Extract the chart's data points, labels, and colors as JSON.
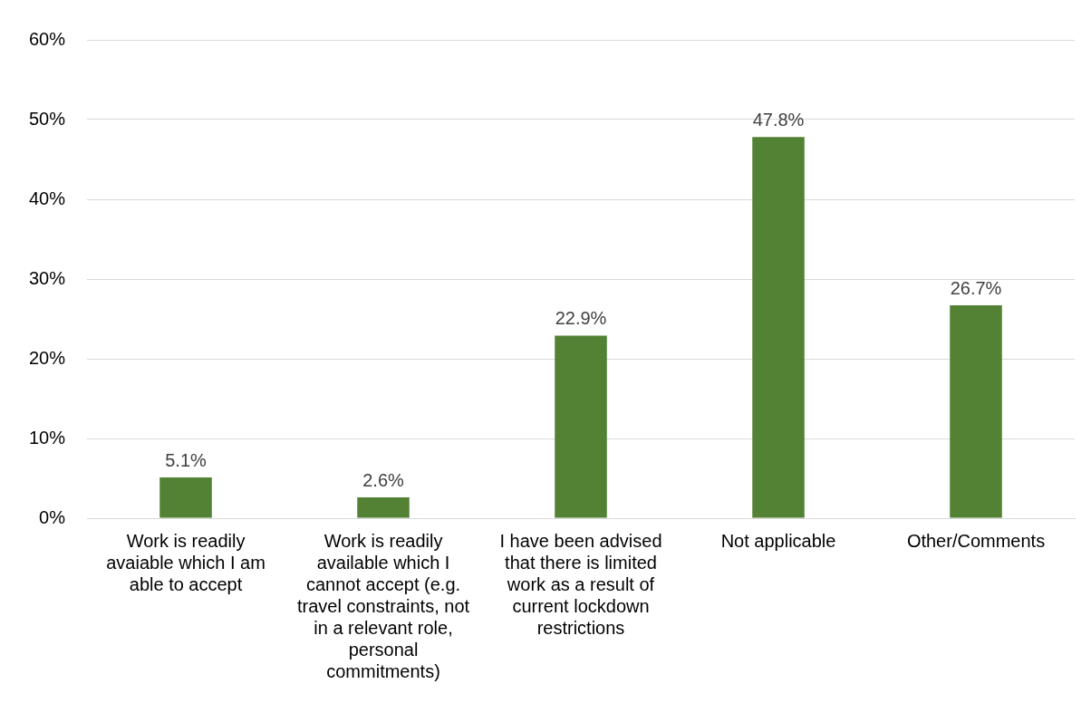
{
  "chart_data": {
    "type": "bar",
    "categories": [
      "Work is readily avaiable which I am able to accept",
      "Work is readily available which I cannot accept (e.g. travel constraints, not in a relevant role, personal commitments)",
      "I have been advised that there is limited work as a result of current lockdown restrictions",
      "Not applicable",
      "Other/Comments"
    ],
    "values": [
      5.1,
      2.6,
      22.9,
      47.8,
      26.7
    ],
    "value_labels": [
      "5.1%",
      "2.6%",
      "22.9%",
      "47.8%",
      "26.7%"
    ],
    "color": "#548235",
    "ylim": [
      0,
      60
    ],
    "yticks": [
      {
        "value": 0,
        "label": "0%"
      },
      {
        "value": 10,
        "label": "10%"
      },
      {
        "value": 20,
        "label": "20%"
      },
      {
        "value": 30,
        "label": "30%"
      },
      {
        "value": 40,
        "label": "40%"
      },
      {
        "value": 50,
        "label": "50%"
      },
      {
        "value": 60,
        "label": "60%"
      }
    ],
    "grid": "y",
    "legend": false
  }
}
